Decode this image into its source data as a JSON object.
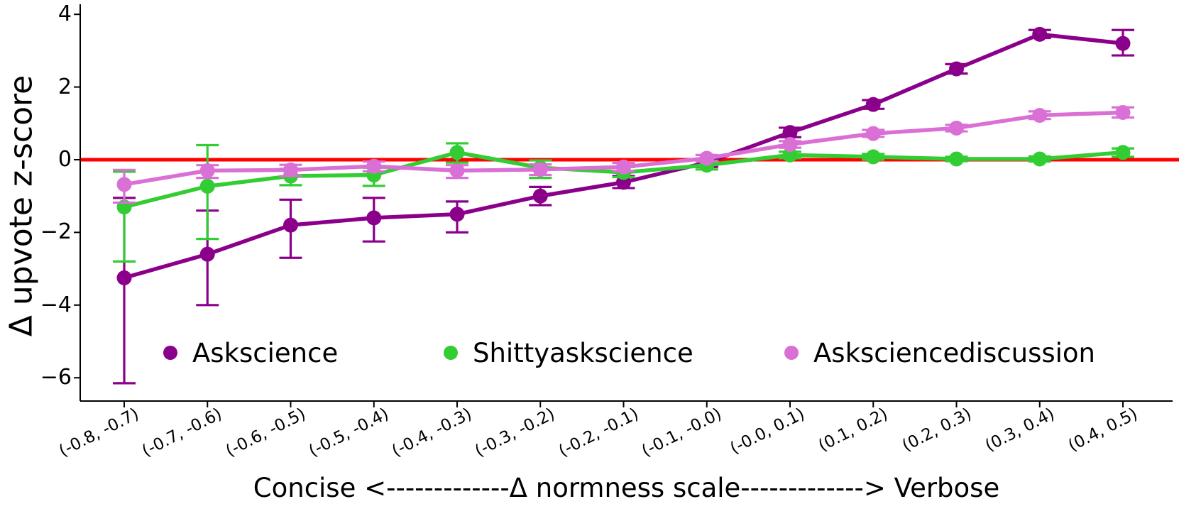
{
  "figure": {
    "background": "#ffffff"
  },
  "chart_data": {
    "type": "line",
    "title": "",
    "ylabel": "Δ upvote z-score",
    "xlabel": "Concise <-------------Δ normness scale-------------> Verbose",
    "grid": false,
    "legend_position": "lower center, inside axes, no frame",
    "ylim": [
      -6.6,
      4.3
    ],
    "y_ticks": [
      4,
      2,
      0,
      -2,
      -4,
      -6
    ],
    "y_tick_labels": [
      "4",
      "2",
      "0",
      "−2",
      "−4",
      "−6"
    ],
    "reference_line": {
      "y": 0,
      "color": "#ff0000"
    },
    "categories": [
      "(-0.8, -0.7)",
      "(-0.7, -0.6)",
      "(-0.6, -0.5)",
      "(-0.5, -0.4)",
      "(-0.4, -0.3)",
      "(-0.3, -0.2)",
      "(-0.2, -0.1)",
      "(-0.1, -0.0)",
      "(-0.0, 0.1)",
      "(0.1, 0.2)",
      "(0.2, 0.3)",
      "(0.3, 0.4)",
      "(0.4, 0.5)"
    ],
    "series": [
      {
        "name": "Askscience",
        "color": "#8b008b",
        "values": [
          -3.25,
          -2.6,
          -1.8,
          -1.6,
          -1.5,
          -1.0,
          -0.62,
          -0.08,
          0.75,
          1.52,
          2.5,
          3.45,
          3.2
        ],
        "err_lo": [
          -6.15,
          -4.0,
          -2.7,
          -2.25,
          -2.0,
          -1.25,
          -0.78,
          -0.2,
          0.62,
          1.4,
          2.37,
          3.35,
          2.87
        ],
        "err_hi": [
          -1.05,
          -1.4,
          -1.1,
          -1.05,
          -1.15,
          -0.75,
          -0.45,
          0.03,
          0.88,
          1.64,
          2.63,
          3.57,
          3.57
        ]
      },
      {
        "name": "Shittyaskscience",
        "color": "#32cd32",
        "values": [
          -1.3,
          -0.73,
          -0.45,
          -0.42,
          0.2,
          -0.22,
          -0.35,
          -0.15,
          0.13,
          0.08,
          0.02,
          0.02,
          0.2
        ],
        "err_lo": [
          -2.8,
          -2.18,
          -0.7,
          -0.72,
          -0.08,
          -0.5,
          -0.48,
          -0.27,
          0.04,
          0.0,
          -0.04,
          -0.05,
          0.08
        ],
        "err_hi": [
          -0.33,
          0.4,
          -0.25,
          -0.22,
          0.45,
          -0.02,
          -0.2,
          -0.03,
          0.22,
          0.16,
          0.08,
          0.09,
          0.31
        ]
      },
      {
        "name": "Asksciencediscussion",
        "color": "#da70d6",
        "values": [
          -0.68,
          -0.3,
          -0.28,
          -0.18,
          -0.3,
          -0.27,
          -0.2,
          0.04,
          0.42,
          0.72,
          0.87,
          1.22,
          1.3
        ],
        "err_lo": [
          -1.18,
          -0.5,
          -0.45,
          -0.32,
          -0.5,
          -0.42,
          -0.32,
          -0.05,
          0.33,
          0.63,
          0.78,
          1.12,
          1.16
        ],
        "err_hi": [
          -0.28,
          -0.15,
          -0.14,
          -0.05,
          -0.15,
          -0.13,
          -0.09,
          0.13,
          0.51,
          0.82,
          0.96,
          1.33,
          1.44
        ]
      }
    ]
  }
}
